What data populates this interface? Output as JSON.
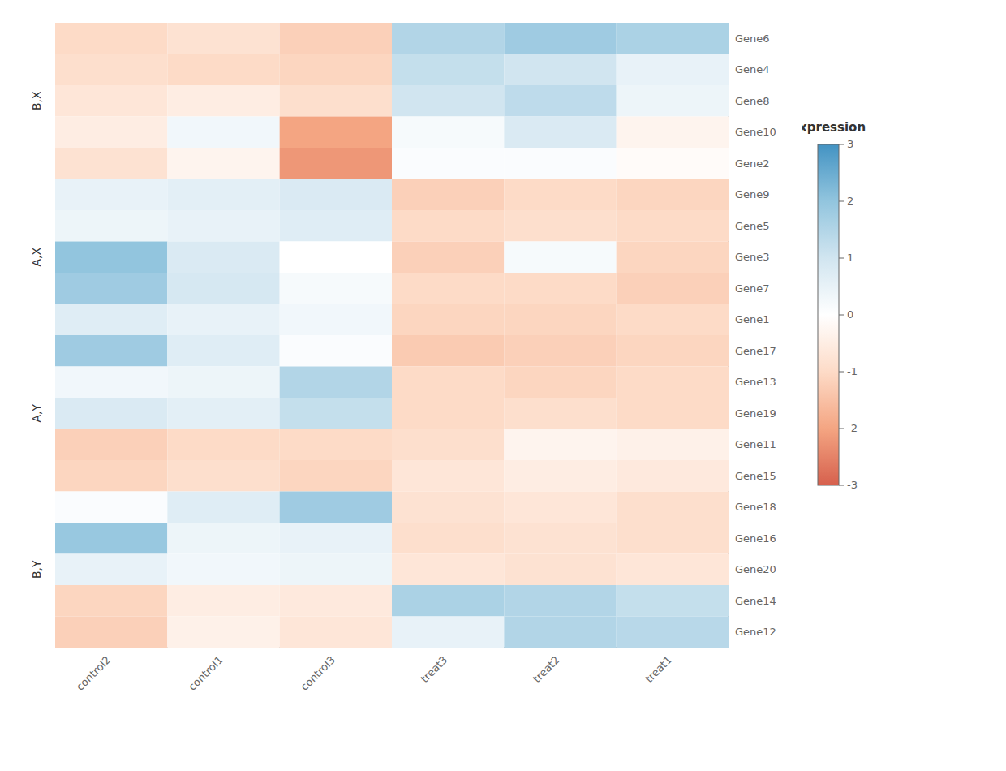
{
  "chart_data": {
    "type": "heatmap",
    "rows": [
      "Gene6",
      "Gene4",
      "Gene8",
      "Gene10",
      "Gene2",
      "Gene9",
      "Gene5",
      "Gene3",
      "Gene7",
      "Gene1",
      "Gene17",
      "Gene13",
      "Gene19",
      "Gene11",
      "Gene15",
      "Gene18",
      "Gene16",
      "Gene20",
      "Gene14",
      "Gene12"
    ],
    "columns": [
      "control2",
      "control1",
      "control3",
      "treat3",
      "treat2",
      "treat1"
    ],
    "values": [
      [
        -1.0,
        -0.8,
        -1.2,
        1.5,
        1.8,
        1.6
      ],
      [
        -0.9,
        -1.0,
        -1.1,
        1.2,
        1.0,
        0.5
      ],
      [
        -0.7,
        -0.5,
        -0.9,
        1.0,
        1.3,
        0.4
      ],
      [
        -0.5,
        0.3,
        -2.0,
        0.2,
        0.8,
        -0.3
      ],
      [
        -0.8,
        -0.3,
        -2.2,
        0.1,
        0.1,
        -0.1
      ],
      [
        0.5,
        0.6,
        0.8,
        -1.2,
        -1.0,
        -1.1
      ],
      [
        0.4,
        0.5,
        0.7,
        -1.0,
        -0.9,
        -1.0
      ],
      [
        2.0,
        0.8,
        0.0,
        -1.2,
        0.2,
        -1.1
      ],
      [
        1.8,
        0.9,
        0.2,
        -1.0,
        -1.0,
        -1.2
      ],
      [
        0.7,
        0.5,
        0.3,
        -1.1,
        -1.1,
        -1.0
      ],
      [
        1.8,
        0.7,
        0.1,
        -1.3,
        -1.2,
        -1.1
      ],
      [
        0.3,
        0.4,
        1.5,
        -1.0,
        -1.1,
        -1.0
      ],
      [
        0.8,
        0.6,
        1.2,
        -1.0,
        -0.9,
        -1.0
      ],
      [
        -1.2,
        -1.0,
        -1.0,
        -0.9,
        -0.3,
        -0.4
      ],
      [
        -1.1,
        -0.9,
        -1.1,
        -0.7,
        -0.5,
        -0.6
      ],
      [
        0.1,
        0.7,
        1.8,
        -0.8,
        -0.7,
        -0.9
      ],
      [
        1.9,
        0.4,
        0.5,
        -0.9,
        -0.8,
        -0.9
      ],
      [
        0.5,
        0.3,
        0.4,
        -0.7,
        -0.8,
        -0.7
      ],
      [
        -1.1,
        -0.5,
        -0.6,
        1.6,
        1.5,
        1.2
      ],
      [
        -1.2,
        -0.4,
        -0.7,
        0.5,
        1.5,
        1.4
      ]
    ],
    "colors": [
      "#d6604d",
      "#f4a582",
      "#fddbc7",
      "#ffffff",
      "#d1e5f0",
      "#92c5de",
      "#4393c3"
    ],
    "color_range": [
      -3,
      3
    ],
    "color_ticks": [
      -3,
      -2,
      -1,
      0,
      1,
      2,
      3
    ],
    "legend_title": "expression",
    "row_groups": [
      {
        "label": "B,X",
        "rows": [
          "Gene6",
          "Gene4",
          "Gene8",
          "Gene10",
          "Gene2"
        ]
      },
      {
        "label": "A,X",
        "rows": [
          "Gene9",
          "Gene5",
          "Gene3",
          "Gene7",
          "Gene1"
        ]
      },
      {
        "label": "A,Y",
        "rows": [
          "Gene17",
          "Gene13",
          "Gene19",
          "Gene11",
          "Gene15"
        ]
      },
      {
        "label": "B,Y",
        "rows": [
          "Gene18",
          "Gene16",
          "Gene20",
          "Gene14",
          "Gene12"
        ]
      }
    ],
    "column_groups": [
      [
        "control2",
        "control1",
        "control3"
      ],
      [
        "treat3",
        "treat2",
        "treat1"
      ]
    ]
  }
}
